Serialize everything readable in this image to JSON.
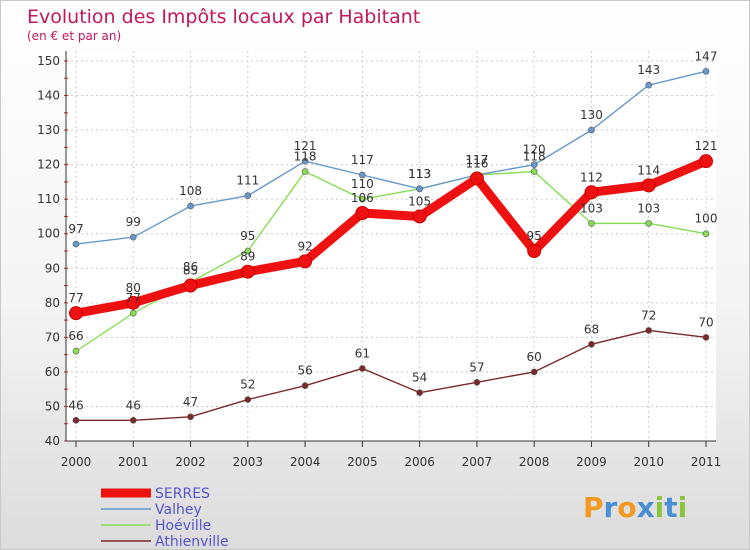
{
  "chart_data": {
    "type": "line",
    "title": "Evolution des Impôts locaux par Habitant",
    "subtitle": "(en € et par an)",
    "xlabel": "",
    "ylabel": "",
    "x": [
      "2000",
      "2001",
      "2002",
      "2003",
      "2004",
      "2005",
      "2006",
      "2007",
      "2008",
      "2009",
      "2010",
      "2011"
    ],
    "ylim": [
      40,
      150
    ],
    "yticks": [
      "40",
      "50",
      "60",
      "70",
      "80",
      "90",
      "100",
      "110",
      "120",
      "130",
      "140",
      "150"
    ],
    "legend_position": "bottom-left",
    "series": [
      {
        "name": "SERRES",
        "color": "#ee1111",
        "values": [
          77,
          80,
          85,
          89,
          92,
          106,
          105,
          116,
          95,
          112,
          114,
          121
        ]
      },
      {
        "name": "Valhey",
        "color": "#6699cc",
        "values": [
          97,
          99,
          108,
          111,
          121,
          117,
          113,
          117,
          120,
          130,
          143,
          147
        ]
      },
      {
        "name": "Hoéville",
        "color": "#88dd55",
        "values": [
          66,
          77,
          86,
          95,
          118,
          110,
          113,
          117,
          118,
          103,
          103,
          100
        ]
      },
      {
        "name": "Athienville",
        "color": "#7a2a2a",
        "values": [
          46,
          46,
          47,
          52,
          56,
          61,
          54,
          57,
          60,
          68,
          72,
          70
        ]
      }
    ]
  },
  "brand": {
    "name": "Proxiti",
    "letters": [
      "P",
      "r",
      "o",
      "x",
      "i",
      "t",
      "i"
    ],
    "colors": [
      "#f29a1f",
      "#4a8fd6",
      "#f29a1f",
      "#4a8fd6",
      "#8bc53f",
      "#4a8fd6",
      "#8bc53f"
    ]
  }
}
